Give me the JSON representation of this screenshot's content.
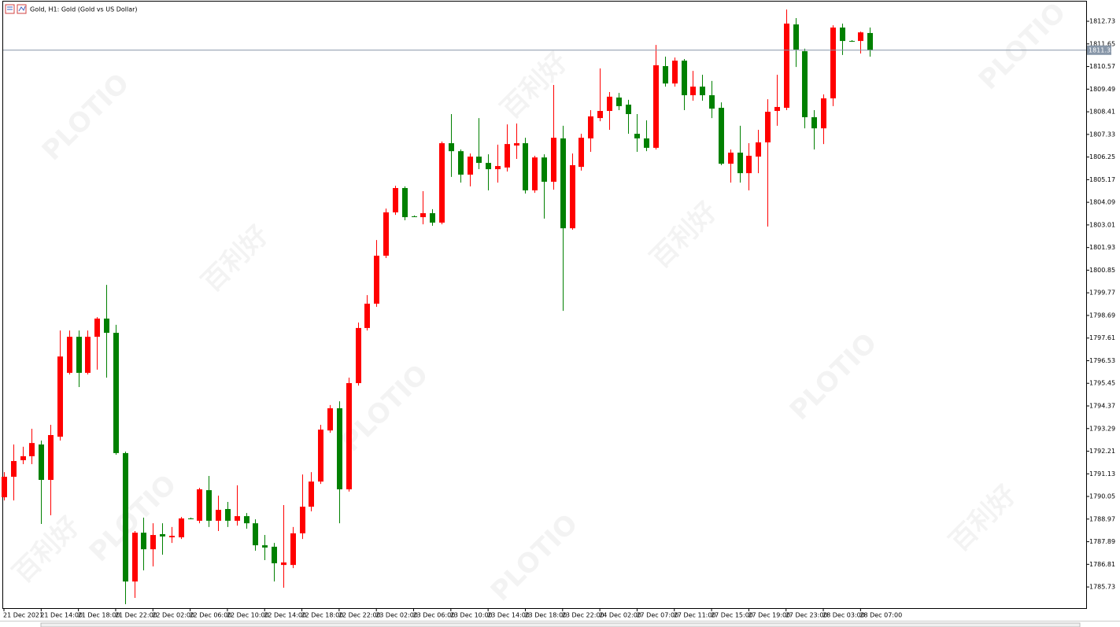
{
  "chart_data": {
    "type": "candlestick",
    "title": "Gold, H1:  Gold (Gold vs US Dollar)",
    "watermark": [
      "PLOTIO",
      "百利好"
    ],
    "categories": [
      "21 Dec 2021",
      null,
      null,
      null,
      "21 Dec 14:00",
      null,
      null,
      null,
      "21 Dec 18:00",
      null,
      null,
      null,
      "21 Dec 22:00",
      null,
      null,
      null,
      "22 Dec 02:00",
      null,
      null,
      null,
      "22 Dec 06:00",
      null,
      null,
      null,
      "22 Dec 10:00",
      null,
      null,
      null,
      "22 Dec 14:00",
      null,
      null,
      null,
      "22 Dec 18:00",
      null,
      null,
      null,
      "22 Dec 22:00",
      null,
      null,
      null,
      "23 Dec 02:00",
      null,
      null,
      null,
      "23 Dec 06:00",
      null,
      null,
      null,
      "23 Dec 10:00",
      null,
      null,
      null,
      "23 Dec 14:00",
      null,
      null,
      null,
      "23 Dec 18:00",
      null,
      null,
      null,
      "23 Dec 22:00",
      null,
      null,
      null,
      "24 Dec 02:00",
      null,
      null,
      null,
      "27 Dec 07:00",
      null,
      null,
      null,
      "27 Dec 11:00",
      null,
      null,
      null,
      "27 Dec 15:00",
      null,
      null,
      null,
      "27 Dec 19:00",
      null,
      null,
      null,
      "27 Dec 23:00",
      null,
      null,
      null,
      "28 Dec 03:00",
      null,
      null,
      null,
      "28 Dec 07:00",
      null
    ],
    "open": [
      1790.01,
      1790.99,
      1791.78,
      1791.97,
      1792.53,
      1790.84,
      1792.9,
      1795.95,
      1797.67,
      1795.95,
      1797.67,
      1798.54,
      1797.86,
      1792.12,
      1785.99,
      1788.32,
      1787.53,
      1788.25,
      1788.1,
      1788.1,
      1789.0,
      1788.89,
      1790.35,
      1788.89,
      1789.45,
      1788.89,
      1789.11,
      1788.77,
      1787.72,
      1787.65,
      1786.78,
      1786.78,
      1788.29,
      1789.56,
      1790.76,
      1793.2,
      1794.26,
      1790.39,
      1795.46,
      1798.09,
      1799.25,
      1801.54,
      1803.61,
      1804.77,
      1803.42,
      1803.38,
      1803.57,
      1803.12,
      1806.91,
      1806.53,
      1805.41,
      1806.27,
      1805.97,
      1805.67,
      1805.75,
      1806.8,
      1806.91,
      1804.66,
      1806.23,
      1805.07,
      1807.14,
      1802.85,
      1805.78,
      1807.14,
      1808.11,
      1808.45,
      1809.09,
      1808.75,
      1807.36,
      1807.14,
      1806.69,
      1810.59,
      1809.76,
      1810.85,
      1809.2,
      1809.61,
      1809.2,
      1808.6,
      1805.93,
      1806.46,
      1805.48,
      1806.27,
      1806.95,
      1808.45,
      1808.6,
      1812.58,
      1811.3,
      1808.15,
      1807.62,
      1809.05,
      1812.43,
      1811.79,
      1811.79,
      1812.17
    ],
    "high": [
      1791.21,
      1792.53,
      1792.42,
      1793.28,
      1792.72,
      1793.47,
      1797.97,
      1797.97,
      1797.97,
      1797.97,
      1798.61,
      1800.15,
      1798.24,
      1792.19,
      1788.4,
      1789.04,
      1788.77,
      1788.77,
      1788.59,
      1789.07,
      1789.04,
      1790.46,
      1791.03,
      1790.09,
      1789.79,
      1790.58,
      1789.26,
      1788.96,
      1788.21,
      1787.83,
      1789.64,
      1788.59,
      1791.1,
      1791.21,
      1793.47,
      1794.41,
      1794.59,
      1795.72,
      1798.35,
      1799.66,
      1802.29,
      1803.79,
      1804.88,
      1804.85,
      1803.46,
      1804.62,
      1803.76,
      1806.99,
      1808.3,
      1806.61,
      1806.42,
      1808.11,
      1806.38,
      1806.84,
      1807.81,
      1807.85,
      1807.17,
      1806.31,
      1806.38,
      1809.69,
      1807.74,
      1806.42,
      1807.36,
      1808.49,
      1810.48,
      1809.35,
      1809.31,
      1808.98,
      1808.3,
      1808.0,
      1811.6,
      1811.04,
      1811.0,
      1810.93,
      1810.36,
      1810.18,
      1809.88,
      1808.86,
      1806.61,
      1807.74,
      1806.91,
      1807.55,
      1809.01,
      1810.18,
      1813.29,
      1812.88,
      1811.42,
      1808.49,
      1809.24,
      1812.54,
      1812.62,
      1811.83,
      1812.24,
      1812.43
    ],
    "low": [
      1789.86,
      1789.86,
      1791.59,
      1791.59,
      1788.74,
      1789.15,
      1792.72,
      1795.87,
      1795.27,
      1795.87,
      1796.1,
      1795.72,
      1792.04,
      1784.91,
      1785.21,
      1786.52,
      1786.71,
      1787.27,
      1787.83,
      1788.02,
      1788.96,
      1788.77,
      1788.59,
      1788.4,
      1788.59,
      1788.66,
      1788.51,
      1787.46,
      1787.01,
      1785.99,
      1785.69,
      1786.63,
      1788.02,
      1789.34,
      1790.65,
      1793.09,
      1788.77,
      1790.28,
      1795.34,
      1797.97,
      1799.1,
      1801.43,
      1803.49,
      1803.23,
      1803.38,
      1803.04,
      1802.97,
      1803.04,
      1805.3,
      1805.03,
      1804.85,
      1805.67,
      1804.66,
      1805.03,
      1805.56,
      1806.16,
      1804.51,
      1804.54,
      1803.31,
      1804.69,
      1798.91,
      1802.78,
      1805.6,
      1806.5,
      1807.96,
      1807.55,
      1808.49,
      1807.36,
      1806.5,
      1806.53,
      1806.61,
      1809.61,
      1809.61,
      1808.49,
      1808.94,
      1808.94,
      1808.11,
      1805.86,
      1805.03,
      1805.03,
      1804.66,
      1805.48,
      1802.93,
      1807.74,
      1808.49,
      1810.55,
      1807.62,
      1806.61,
      1806.87,
      1808.68,
      1811.12,
      1811.75,
      1811.19,
      1811.04
    ],
    "close": [
      1790.99,
      1791.74,
      1791.97,
      1792.6,
      1790.84,
      1792.98,
      1796.73,
      1797.67,
      1795.95,
      1797.67,
      1798.54,
      1797.86,
      1792.12,
      1785.99,
      1788.32,
      1787.53,
      1788.21,
      1788.14,
      1788.17,
      1789.0,
      1789.0,
      1790.39,
      1788.89,
      1789.41,
      1788.89,
      1789.11,
      1788.77,
      1787.72,
      1787.61,
      1786.86,
      1786.9,
      1788.29,
      1789.56,
      1790.76,
      1793.24,
      1794.26,
      1790.39,
      1795.46,
      1798.09,
      1799.25,
      1801.54,
      1803.61,
      1804.77,
      1803.38,
      1803.42,
      1803.57,
      1803.12,
      1806.91,
      1806.53,
      1805.41,
      1806.27,
      1805.97,
      1805.67,
      1805.82,
      1806.87,
      1806.91,
      1804.66,
      1806.23,
      1805.07,
      1807.17,
      1802.85,
      1805.86,
      1807.17,
      1808.19,
      1808.45,
      1809.13,
      1808.68,
      1808.3,
      1807.14,
      1806.69,
      1810.63,
      1809.76,
      1810.85,
      1809.2,
      1809.61,
      1809.2,
      1808.56,
      1805.93,
      1806.46,
      1805.48,
      1806.31,
      1806.95,
      1808.41,
      1808.64,
      1812.62,
      1811.38,
      1808.15,
      1807.62,
      1809.05,
      1812.43,
      1811.79,
      1811.79,
      1812.2,
      1811.35
    ],
    "up_color": "#ff0000",
    "down_color": "#008000",
    "last_price": 1811.35,
    "last_price_color": "#8796a8",
    "ylim": [
      1784.72,
      1813.67
    ],
    "yticks": [
      1812.73,
      1811.65,
      1810.57,
      1809.49,
      1808.41,
      1807.33,
      1806.25,
      1805.17,
      1804.09,
      1803.01,
      1801.93,
      1800.85,
      1799.77,
      1798.69,
      1797.61,
      1796.53,
      1795.45,
      1794.37,
      1793.29,
      1792.21,
      1791.13,
      1790.05,
      1788.97,
      1787.89,
      1786.81,
      1785.73
    ],
    "grid": false
  }
}
